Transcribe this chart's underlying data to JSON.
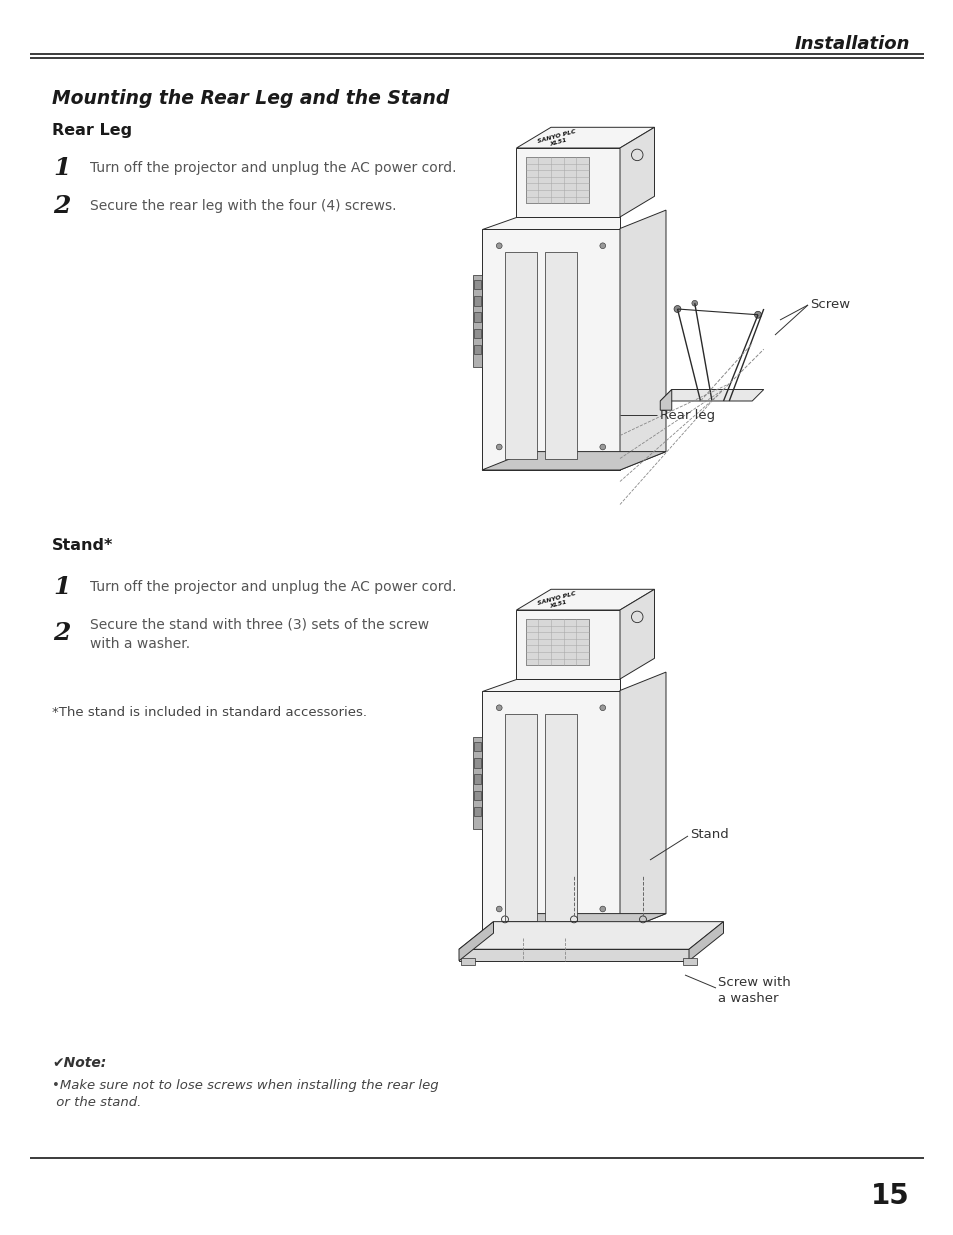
{
  "bg_color": "#ffffff",
  "text_color": "#1a1a1a",
  "header_title": "Installation",
  "section_title": "Mounting the Rear Leg and the Stand",
  "subsection1": "Rear Leg",
  "subsection2": "Stand*",
  "step1_1": "Turn off the projector and unplug the AC power cord.",
  "step1_2": "Secure the rear leg with the four (4) screws.",
  "step2_1": "Turn off the projector and unplug the AC power cord.",
  "step2_2a": "Secure the stand with three (3) sets of the screw",
  "step2_2b": "with a washer.",
  "footnote": "*The stand is included in standard accessories.",
  "note_header": "✔Note:",
  "note_line1": "•Make sure not to lose screws when installing the rear leg",
  "note_line2": " or the stand.",
  "page_number": "15",
  "label_screw": "Screw",
  "label_rear_leg": "Rear leg",
  "label_stand": "Stand",
  "label_screw_washer1": "Screw with",
  "label_screw_washer2": "a washer",
  "edge_color": "#2a2a2a",
  "body_fill": "#f5f5f5",
  "dark_fill": "#c8c8c8",
  "mid_fill": "#e0e0e0"
}
